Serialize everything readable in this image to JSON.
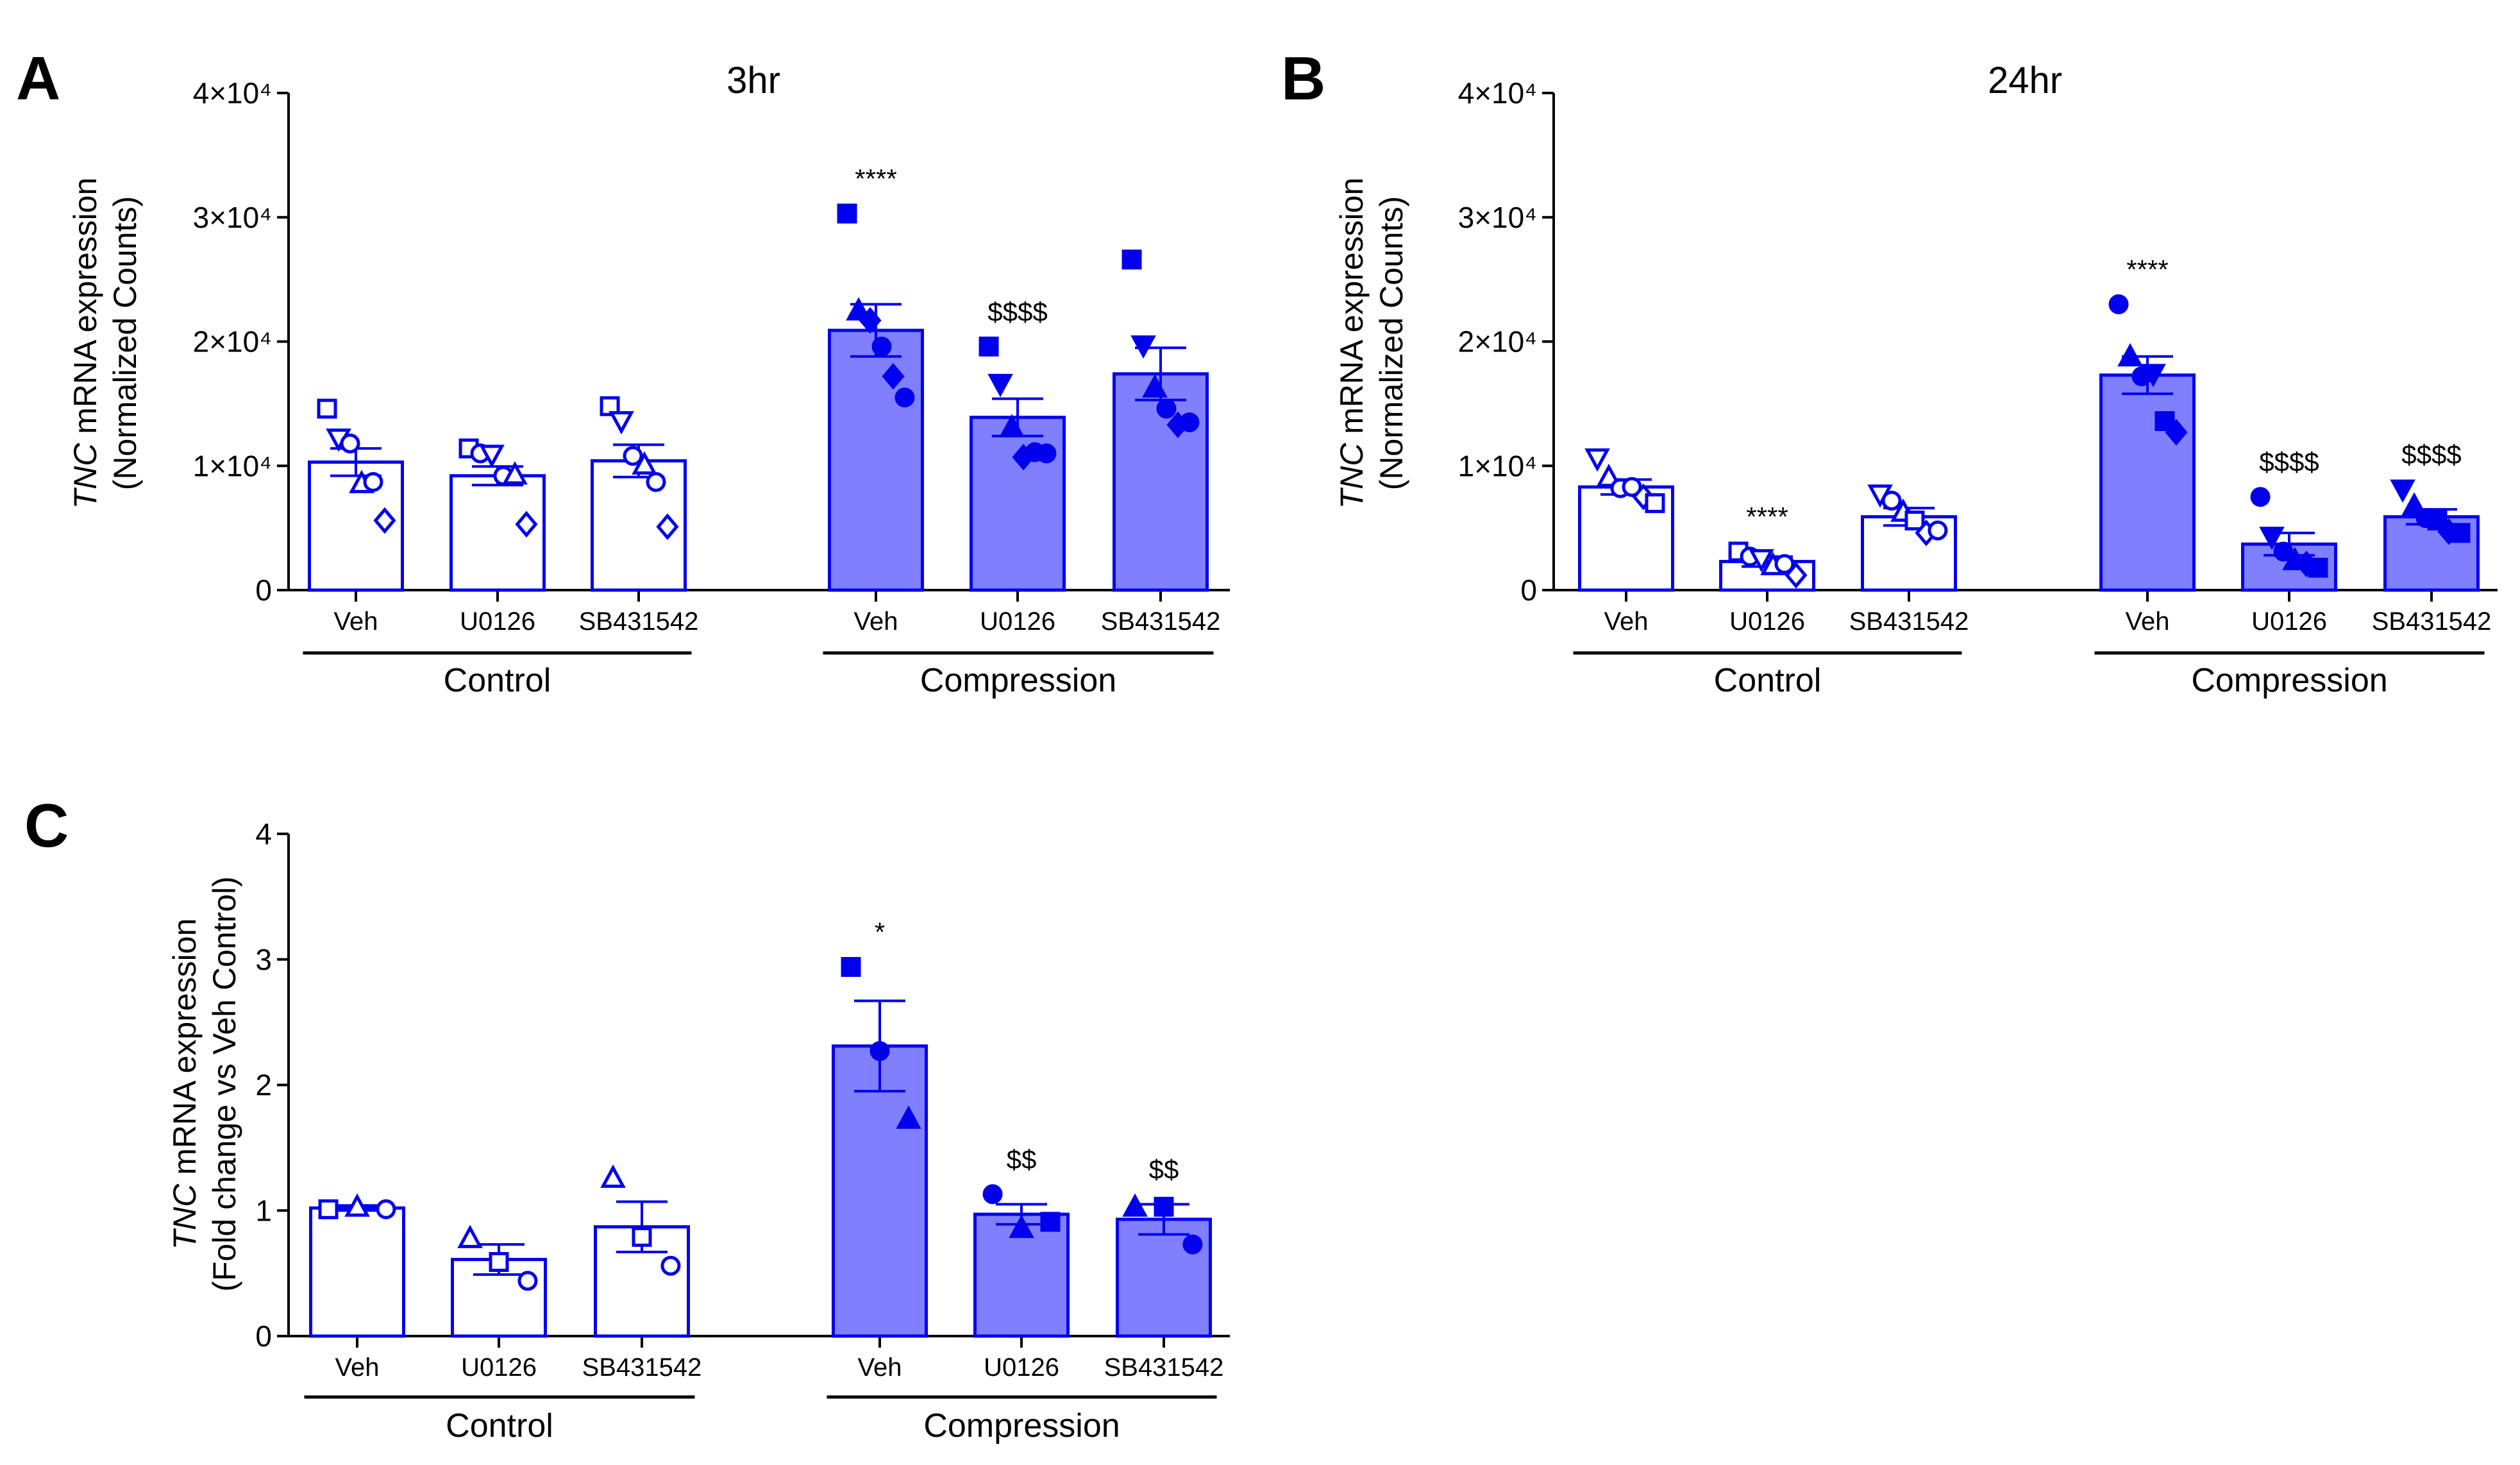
{
  "colors": {
    "accent": "#0000ee",
    "fill": "#8080ff",
    "open_fill": "#ffffff",
    "axis": "#000000"
  },
  "chart_data": [
    {
      "panel": "A",
      "type": "bar",
      "title": "3hr",
      "ylabel_italic": "TNC",
      "ylabel_line1": " mRNA expression",
      "ylabel_line2": "(Normalized Counts)",
      "ylim": [
        0,
        40000
      ],
      "yticks": [
        0,
        10000,
        20000,
        30000,
        40000
      ],
      "ytick_labels": [
        "0",
        "1×10⁴",
        "2×10⁴",
        "3×10⁴",
        "4×10⁴"
      ],
      "categories": [
        "Veh",
        "U0126",
        "SB431542",
        "Veh",
        "U0126",
        "SB431542"
      ],
      "groups": [
        {
          "label": "Control",
          "bars": [
            0,
            1,
            2
          ]
        },
        {
          "label": "Compression",
          "bars": [
            3,
            4,
            5
          ]
        }
      ],
      "bars": [
        {
          "value": 10300,
          "sem": 1100,
          "filled": false,
          "sig": "",
          "points": [
            {
              "m": "square",
              "y": 14600
            },
            {
              "m": "triangle-down",
              "y": 12200
            },
            {
              "m": "circle",
              "y": 11800
            },
            {
              "m": "triangle",
              "y": 8600
            },
            {
              "m": "circle",
              "y": 8700
            },
            {
              "m": "diamond",
              "y": 5600
            }
          ]
        },
        {
          "value": 9200,
          "sem": 750,
          "filled": false,
          "sig": "",
          "points": [
            {
              "m": "square",
              "y": 11400
            },
            {
              "m": "circle",
              "y": 11000
            },
            {
              "m": "triangle-down",
              "y": 10900
            },
            {
              "m": "circle",
              "y": 9200
            },
            {
              "m": "triangle",
              "y": 9300
            },
            {
              "m": "diamond",
              "y": 5300
            }
          ]
        },
        {
          "value": 10400,
          "sem": 1300,
          "filled": false,
          "sig": "",
          "points": [
            {
              "m": "square",
              "y": 14800
            },
            {
              "m": "triangle-down",
              "y": 13600
            },
            {
              "m": "circle",
              "y": 10800
            },
            {
              "m": "triangle",
              "y": 10100
            },
            {
              "m": "circle",
              "y": 8700
            },
            {
              "m": "diamond",
              "y": 5100
            }
          ]
        },
        {
          "value": 20900,
          "sem": 2100,
          "filled": true,
          "sig": "****",
          "points": [
            {
              "m": "square",
              "y": 30300
            },
            {
              "m": "triangle",
              "y": 22500
            },
            {
              "m": "diamond",
              "y": 21700
            },
            {
              "m": "circle",
              "y": 19600
            },
            {
              "m": "diamond",
              "y": 17200
            },
            {
              "m": "circle",
              "y": 15500
            }
          ]
        },
        {
          "value": 13900,
          "sem": 1500,
          "filled": true,
          "sig": "$$$$",
          "points": [
            {
              "m": "square",
              "y": 19600
            },
            {
              "m": "triangle-down",
              "y": 16600
            },
            {
              "m": "triangle",
              "y": 13100
            },
            {
              "m": "diamond",
              "y": 10700
            },
            {
              "m": "circle",
              "y": 11100
            },
            {
              "m": "circle",
              "y": 11000
            }
          ]
        },
        {
          "value": 17400,
          "sem": 2100,
          "filled": true,
          "sig": "",
          "points": [
            {
              "m": "square",
              "y": 26600
            },
            {
              "m": "triangle-down",
              "y": 19700
            },
            {
              "m": "triangle",
              "y": 16300
            },
            {
              "m": "circle",
              "y": 14600
            },
            {
              "m": "diamond",
              "y": 13300
            },
            {
              "m": "circle",
              "y": 13500
            }
          ]
        }
      ]
    },
    {
      "panel": "B",
      "type": "bar",
      "title": "24hr",
      "ylabel_italic": "TNC",
      "ylabel_line1": " mRNA expression",
      "ylabel_line2": "(Normalized Counts)",
      "ylim": [
        0,
        40000
      ],
      "yticks": [
        0,
        10000,
        20000,
        30000,
        40000
      ],
      "ytick_labels": [
        "0",
        "1×10⁴",
        "2×10⁴",
        "3×10⁴",
        "4×10⁴"
      ],
      "categories": [
        "Veh",
        "U0126",
        "SB431542",
        "Veh",
        "U0126",
        "SB431542"
      ],
      "groups": [
        {
          "label": "Control",
          "bars": [
            0,
            1,
            2
          ]
        },
        {
          "label": "Compression",
          "bars": [
            3,
            4,
            5
          ]
        }
      ],
      "bars": [
        {
          "value": 8300,
          "sem": 600,
          "filled": false,
          "sig": "",
          "points": [
            {
              "m": "triangle-down",
              "y": 10600
            },
            {
              "m": "triangle",
              "y": 9100
            },
            {
              "m": "circle",
              "y": 8200
            },
            {
              "m": "circle",
              "y": 8300
            },
            {
              "m": "diamond",
              "y": 7500
            },
            {
              "m": "square",
              "y": 7000
            }
          ]
        },
        {
          "value": 2300,
          "sem": 400,
          "filled": false,
          "sig": "****",
          "points": [
            {
              "m": "square",
              "y": 3100
            },
            {
              "m": "circle",
              "y": 2700
            },
            {
              "m": "triangle-down",
              "y": 2500
            },
            {
              "m": "triangle",
              "y": 2000
            },
            {
              "m": "circle",
              "y": 2100
            },
            {
              "m": "diamond",
              "y": 1200
            }
          ]
        },
        {
          "value": 5900,
          "sem": 700,
          "filled": false,
          "sig": "",
          "points": [
            {
              "m": "triangle-down",
              "y": 7700
            },
            {
              "m": "circle",
              "y": 7200
            },
            {
              "m": "triangle",
              "y": 6300
            },
            {
              "m": "square",
              "y": 5600
            },
            {
              "m": "diamond",
              "y": 4600
            },
            {
              "m": "circle",
              "y": 4800
            }
          ]
        },
        {
          "value": 17300,
          "sem": 1500,
          "filled": true,
          "sig": "****",
          "points": [
            {
              "m": "circle",
              "y": 23000
            },
            {
              "m": "triangle",
              "y": 18800
            },
            {
              "m": "circle",
              "y": 17200
            },
            {
              "m": "triangle-down",
              "y": 17400
            },
            {
              "m": "square",
              "y": 13600
            },
            {
              "m": "diamond",
              "y": 12700
            }
          ]
        },
        {
          "value": 3700,
          "sem": 900,
          "filled": true,
          "sig": "$$$$",
          "points": [
            {
              "m": "circle",
              "y": 7500
            },
            {
              "m": "triangle-down",
              "y": 4300
            },
            {
              "m": "circle",
              "y": 3100
            },
            {
              "m": "triangle",
              "y": 2400
            },
            {
              "m": "diamond",
              "y": 2100
            },
            {
              "m": "square",
              "y": 1800
            }
          ]
        },
        {
          "value": 5900,
          "sem": 600,
          "filled": true,
          "sig": "$$$$",
          "points": [
            {
              "m": "triangle-down",
              "y": 8100
            },
            {
              "m": "triangle",
              "y": 6800
            },
            {
              "m": "circle",
              "y": 5800
            },
            {
              "m": "square",
              "y": 5600
            },
            {
              "m": "diamond",
              "y": 4700
            },
            {
              "m": "square",
              "y": 4600
            }
          ]
        }
      ]
    },
    {
      "panel": "C",
      "type": "bar",
      "title": "",
      "ylabel_italic": "TNC",
      "ylabel_line1": " mRNA expression",
      "ylabel_line2": "(Fold change vs Veh Control)",
      "ylim": [
        0,
        4
      ],
      "yticks": [
        0,
        1,
        2,
        3,
        4
      ],
      "ytick_labels": [
        "0",
        "1",
        "2",
        "3",
        "4"
      ],
      "categories": [
        "Veh",
        "U0126",
        "SB431542",
        "Veh",
        "U0126",
        "SB431542"
      ],
      "groups": [
        {
          "label": "Control",
          "bars": [
            0,
            1,
            2
          ]
        },
        {
          "label": "Compression",
          "bars": [
            3,
            4,
            5
          ]
        }
      ],
      "bars": [
        {
          "value": 1.02,
          "sem": 0.02,
          "filled": false,
          "sig": "",
          "points": [
            {
              "m": "square",
              "y": 1.01
            },
            {
              "m": "triangle",
              "y": 1.03
            },
            {
              "m": "circle",
              "y": 1.01
            }
          ]
        },
        {
          "value": 0.61,
          "sem": 0.12,
          "filled": false,
          "sig": "",
          "points": [
            {
              "m": "triangle",
              "y": 0.78
            },
            {
              "m": "square",
              "y": 0.59
            },
            {
              "m": "circle",
              "y": 0.44
            }
          ]
        },
        {
          "value": 0.87,
          "sem": 0.2,
          "filled": false,
          "sig": "",
          "points": [
            {
              "m": "triangle",
              "y": 1.26
            },
            {
              "m": "square",
              "y": 0.79
            },
            {
              "m": "circle",
              "y": 0.56
            }
          ]
        },
        {
          "value": 2.31,
          "sem": 0.36,
          "filled": true,
          "sig": "*",
          "points": [
            {
              "m": "square",
              "y": 2.94
            },
            {
              "m": "circle",
              "y": 2.27
            },
            {
              "m": "triangle",
              "y": 1.73
            }
          ]
        },
        {
          "value": 0.97,
          "sem": 0.08,
          "filled": true,
          "sig": "$$",
          "points": [
            {
              "m": "circle",
              "y": 1.13
            },
            {
              "m": "triangle",
              "y": 0.86
            },
            {
              "m": "square",
              "y": 0.91
            }
          ]
        },
        {
          "value": 0.93,
          "sem": 0.12,
          "filled": true,
          "sig": "$$",
          "points": [
            {
              "m": "triangle",
              "y": 1.03
            },
            {
              "m": "square",
              "y": 1.03
            },
            {
              "m": "circle",
              "y": 0.73
            }
          ]
        }
      ]
    }
  ]
}
